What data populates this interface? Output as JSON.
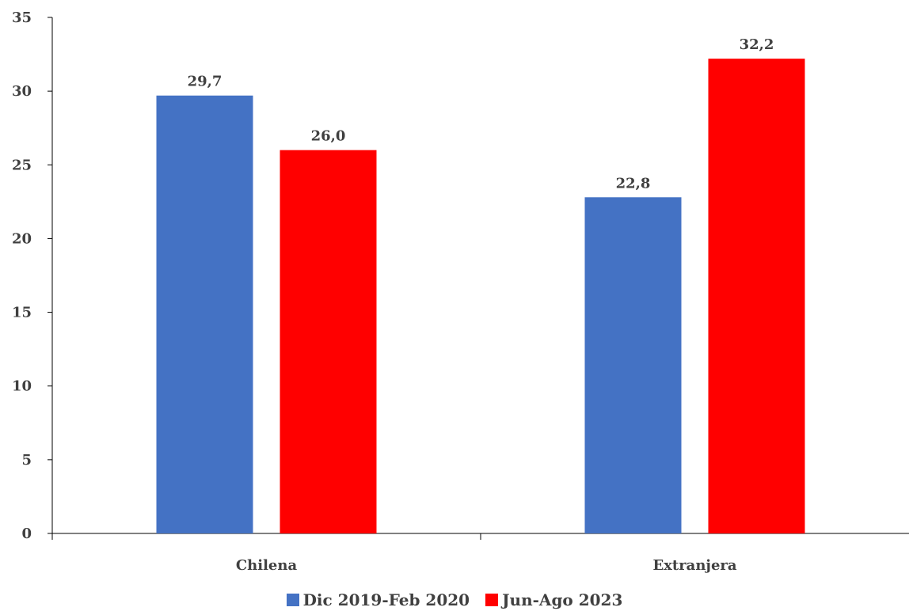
{
  "chart_data": {
    "type": "bar",
    "title": "",
    "xlabel": "",
    "ylabel": "",
    "categories": [
      "Chilena",
      "Extranjera"
    ],
    "series": [
      {
        "name": "Dic 2019-Feb 2020",
        "color": "#4472C4",
        "values": [
          29.7,
          22.8
        ],
        "labels": [
          "29,7",
          "22,8"
        ]
      },
      {
        "name": "Jun-Ago 2023",
        "color": "#FF0000",
        "values": [
          26.0,
          32.2
        ],
        "labels": [
          "26,0",
          "32,2"
        ]
      }
    ],
    "ylim": [
      0,
      35
    ],
    "yticks": [
      0,
      5,
      10,
      15,
      20,
      25,
      30,
      35
    ],
    "grid": false,
    "legend_position": "bottom"
  }
}
